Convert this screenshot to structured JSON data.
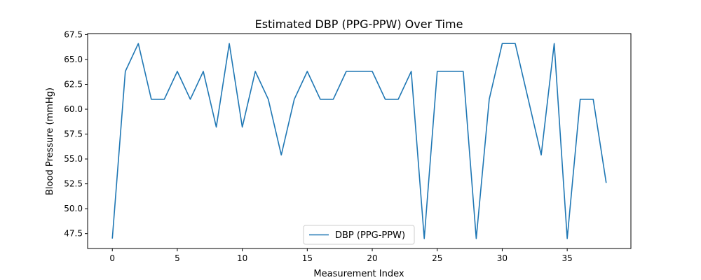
{
  "chart_data": {
    "type": "line",
    "title": "Estimated DBP (PPG-PPW) Over Time",
    "xlabel": "Measurement Index",
    "ylabel": "Blood Pressure (mmHg)",
    "xlim": [
      -1.9,
      39.9
    ],
    "ylim": [
      46.0,
      67.6
    ],
    "xticks": [
      0,
      5,
      10,
      15,
      20,
      25,
      30,
      35
    ],
    "yticks": [
      47.5,
      50.0,
      52.5,
      55.0,
      57.5,
      60.0,
      62.5,
      65.0,
      67.5
    ],
    "grid": false,
    "legend_position": "lower center",
    "series": [
      {
        "name": "DBP (PPG-PPW)",
        "color": "#1f77b4",
        "x": [
          0,
          1,
          2,
          3,
          4,
          5,
          6,
          7,
          8,
          9,
          10,
          11,
          12,
          13,
          14,
          15,
          16,
          17,
          18,
          19,
          20,
          21,
          22,
          23,
          24,
          25,
          26,
          27,
          28,
          29,
          30,
          31,
          32,
          33,
          34,
          35,
          36,
          37,
          38
        ],
        "values": [
          47.0,
          63.8,
          66.6,
          61.0,
          61.0,
          63.8,
          61.0,
          63.8,
          58.2,
          66.6,
          58.2,
          63.8,
          61.0,
          55.4,
          61.0,
          63.8,
          61.0,
          61.0,
          63.8,
          63.8,
          63.8,
          61.0,
          61.0,
          63.8,
          47.0,
          63.8,
          63.8,
          63.8,
          47.0,
          61.0,
          66.6,
          66.6,
          61.0,
          55.4,
          66.6,
          47.0,
          61.0,
          61.0,
          52.6
        ]
      }
    ]
  }
}
